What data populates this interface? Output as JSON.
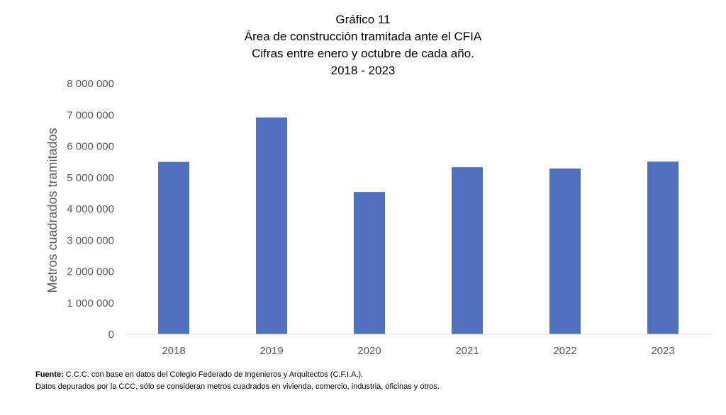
{
  "chart_data": {
    "type": "bar",
    "title_lines": [
      "Gráfico 11",
      "Área de construcción tramitada ante el CFIA",
      "Cifras entre enero y octubre de cada año.",
      "2018 - 2023"
    ],
    "categories": [
      "2018",
      "2019",
      "2020",
      "2021",
      "2022",
      "2023"
    ],
    "values": [
      5500000,
      6920000,
      4540000,
      5330000,
      5290000,
      5510000
    ],
    "xlabel": "",
    "ylabel": "Metros cuadrados tramitados",
    "ylim": [
      0,
      8000000
    ],
    "yticks": [
      0,
      1000000,
      2000000,
      3000000,
      4000000,
      5000000,
      6000000,
      7000000,
      8000000
    ],
    "ytick_labels": [
      "0",
      "1 000 000",
      "2 000 000",
      "3 000 000",
      "4 000 000",
      "5 000 000",
      "6 000 000",
      "7 000 000",
      "8 000 000"
    ],
    "grid": false,
    "legend": "none",
    "bar_color": "#4f71be",
    "axis_color": "#d9d9d9",
    "tick_color": "#595959"
  },
  "footnote": {
    "source_label": "Fuente:",
    "source_text": " C.C.C. con base en datos del Colegio Federado de Ingenieros y Arquitectos (C.F.I.A.).",
    "note": "Datos depurados por la CCC, sólo se consideran metros cuadrados en vivienda, comercio, industria, oficinas y otros."
  }
}
